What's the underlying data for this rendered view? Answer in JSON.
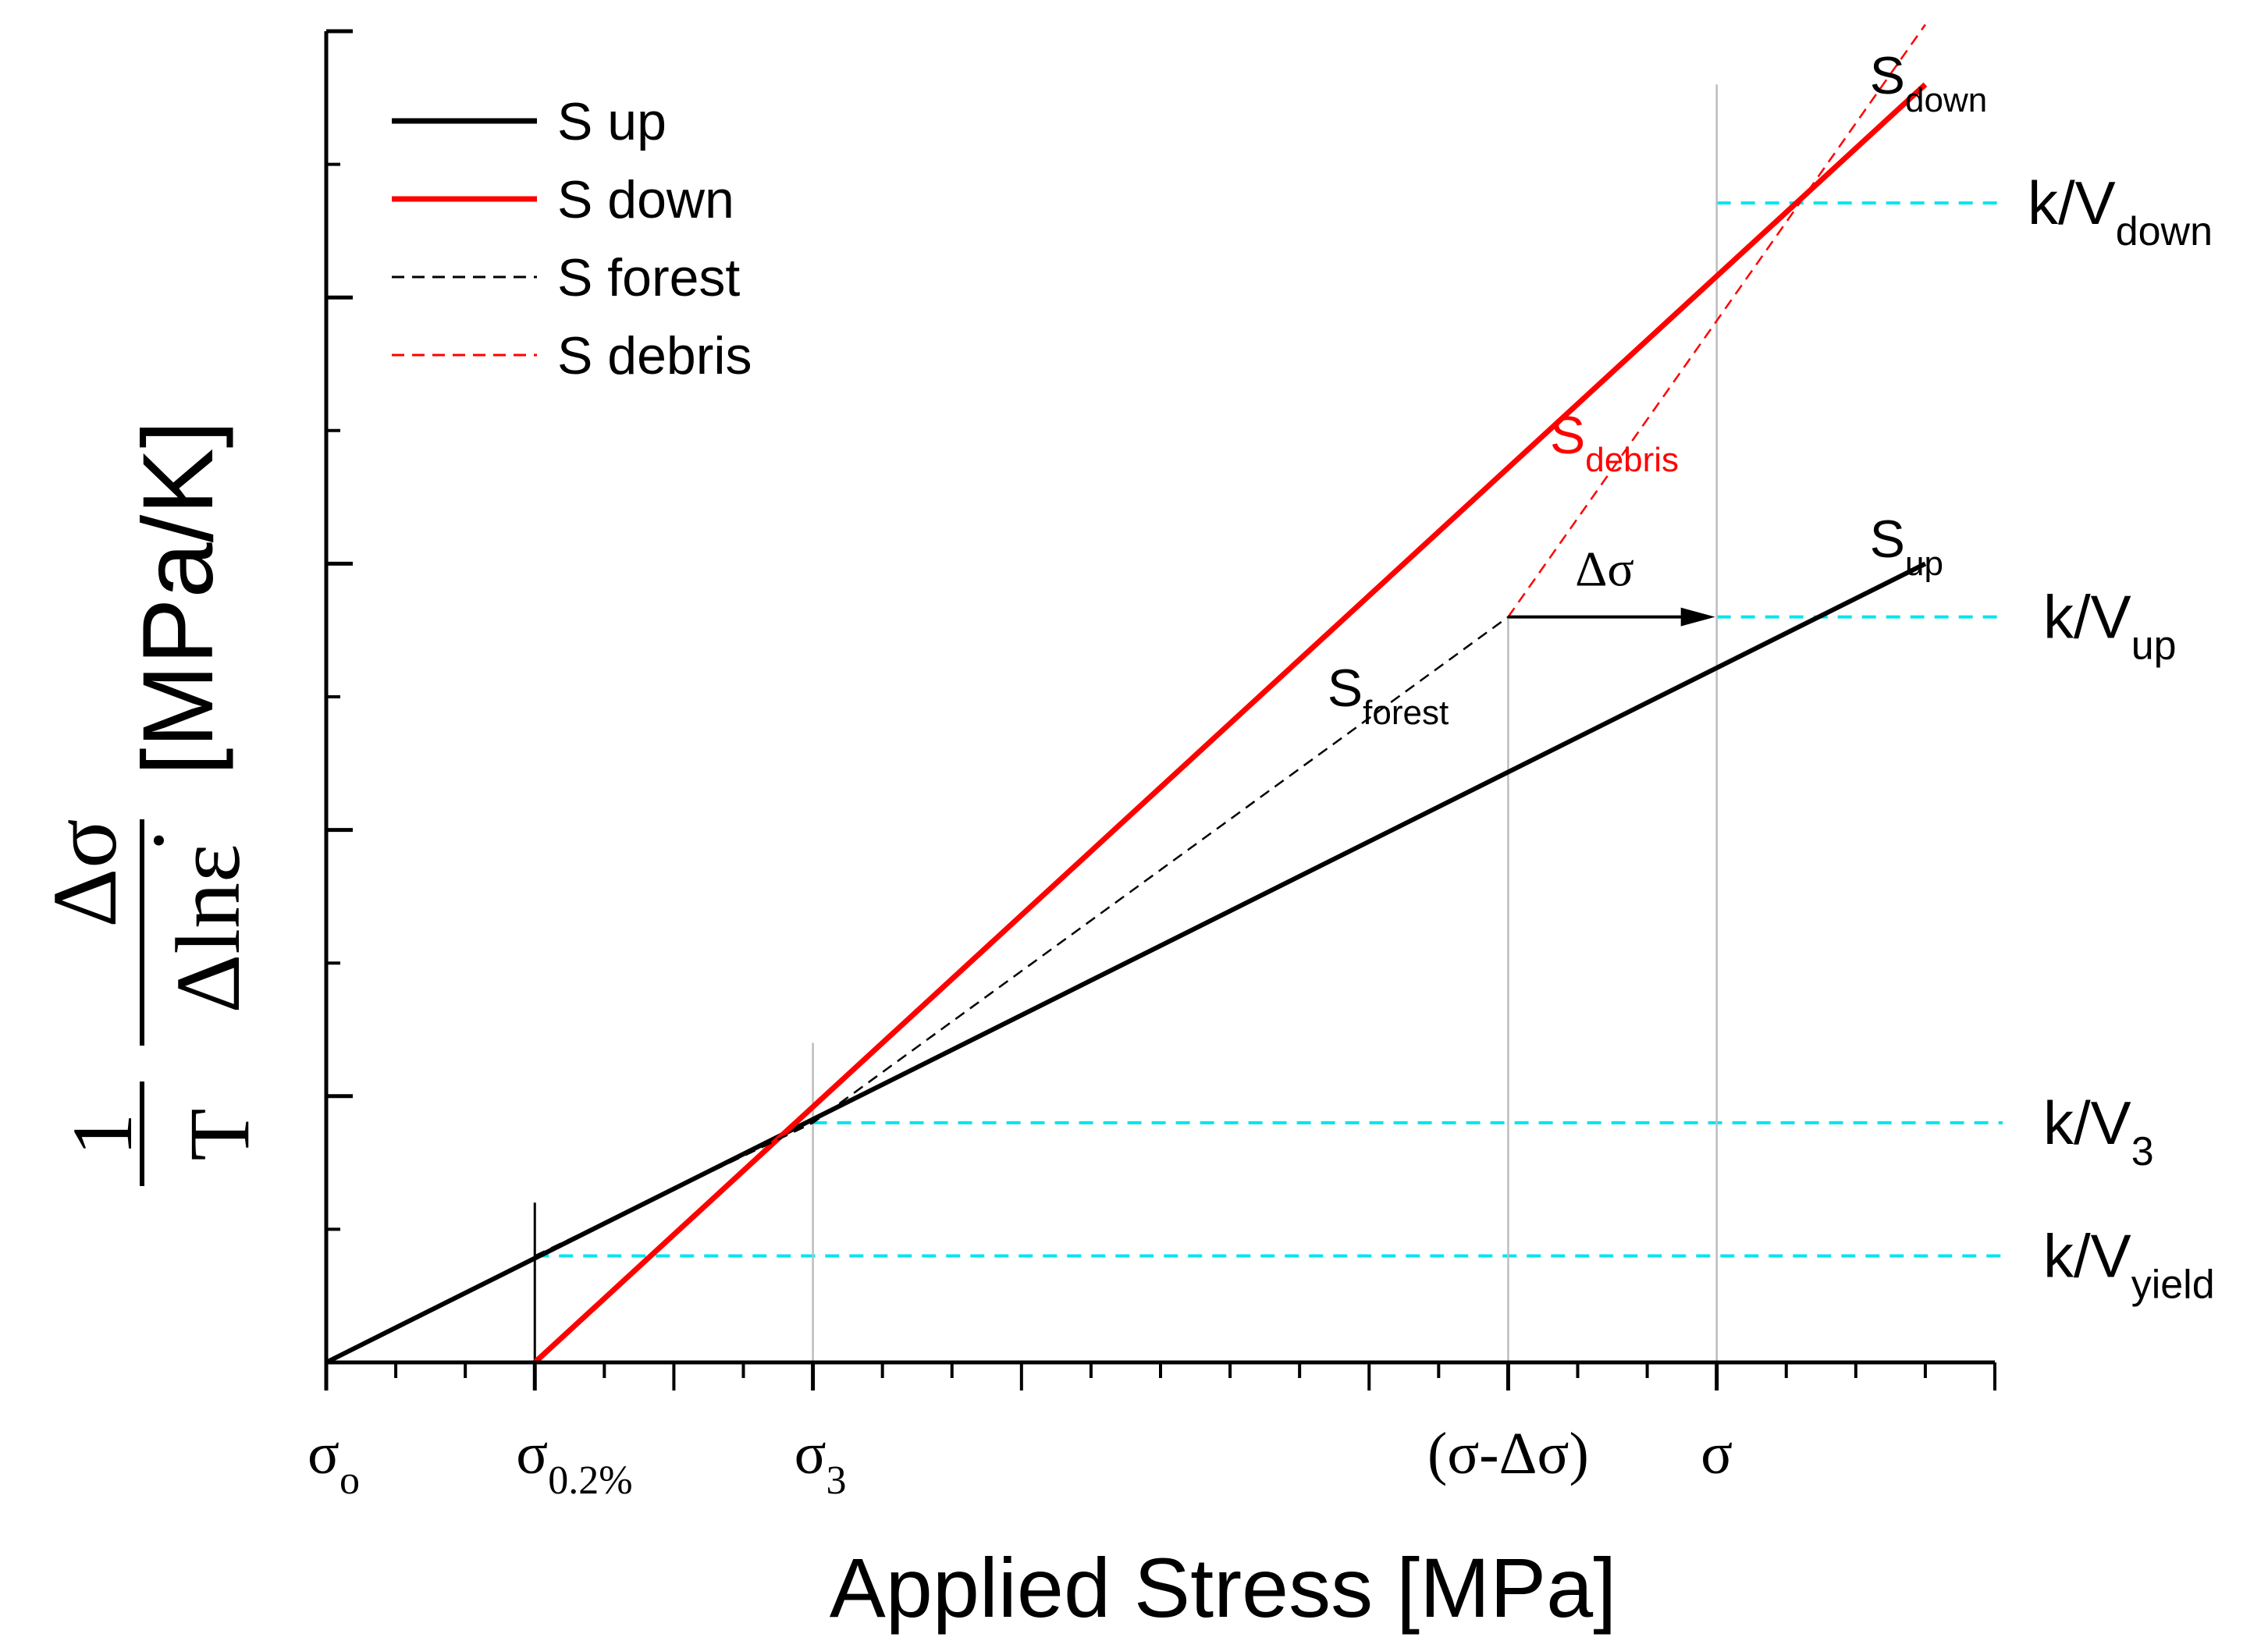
{
  "chart_data": {
    "type": "line",
    "title": "",
    "xlabel": "Applied Stress  [MPa]",
    "ylabel": {
      "unit": "[MPa/K]",
      "frac1_num": "1",
      "frac1_den": "T",
      "frac2_num": "Δσ",
      "frac2_den": "Δlnε",
      "dot": "·"
    },
    "xlim": [
      0,
      24
    ],
    "ylim": [
      0,
      100
    ],
    "x_ticks": [
      {
        "x": 0,
        "base": "σ",
        "sub": "o"
      },
      {
        "x": 3,
        "base": "σ",
        "sub": "0.2%"
      },
      {
        "x": 7,
        "base": "σ",
        "sub": "3"
      },
      {
        "x": 17,
        "base": "(σ-Δσ)",
        "sub": ""
      },
      {
        "x": 20,
        "base": "σ",
        "sub": ""
      }
    ],
    "minor_x_ticks": [
      1,
      2,
      4,
      5,
      6,
      8,
      9,
      10,
      11,
      12,
      13,
      14,
      15,
      16,
      18,
      19,
      21,
      22,
      23,
      24
    ],
    "y_major_ticks": [
      20,
      40,
      60,
      80,
      100
    ],
    "series": [
      {
        "name": "S up",
        "color": "#000000",
        "dash": "solid",
        "x": [
          0,
          23
        ],
        "y": [
          0,
          60
        ]
      },
      {
        "name": "S down",
        "color": "#ff0000",
        "dash": "solid",
        "x": [
          3,
          23
        ],
        "y": [
          0,
          96
        ]
      },
      {
        "name": "S forest",
        "color": "#000000",
        "dash": "dashed",
        "x": [
          3,
          7,
          17
        ],
        "y": [
          8,
          18,
          56
        ]
      },
      {
        "name": "S debris",
        "color": "#ff0000",
        "dash": "dashed",
        "x": [
          17,
          23
        ],
        "y": [
          56,
          100.5
        ]
      }
    ],
    "legend": {
      "placement": "top-left",
      "entries": [
        {
          "label": "S up",
          "color": "#000000",
          "dash": "solid"
        },
        {
          "label": "S down",
          "color": "#ff0000",
          "dash": "solid"
        },
        {
          "label": "S forest",
          "color": "#000000",
          "dash": "dashed"
        },
        {
          "label": "S debris",
          "color": "#ff0000",
          "dash": "dashed"
        }
      ]
    },
    "guide_color": "#00e5ee",
    "guides": [
      {
        "label": "k/V",
        "sub": "down",
        "y": 87.1,
        "from_x": 20
      },
      {
        "label": "k/V",
        "sub": "up",
        "y": 56,
        "from_x": 20
      },
      {
        "label": "k/V",
        "sub": "3",
        "y": 18,
        "from_x": 7
      },
      {
        "label": "k/V",
        "sub": "yield",
        "y": 8,
        "from_x": 3
      }
    ],
    "vertical_lines": [
      {
        "x": 3,
        "y_top": 12,
        "color": "#000000"
      },
      {
        "x": 7,
        "y_top": 24,
        "color": "#bdbdbd"
      },
      {
        "x": 17,
        "y_top": 56,
        "color": "#bdbdbd"
      },
      {
        "x": 20,
        "y_top": 96,
        "color": "#bdbdbd"
      }
    ],
    "arrow": {
      "label": "Δσ",
      "from": [
        17,
        56
      ],
      "to": [
        20,
        56
      ]
    },
    "annotations": [
      {
        "base": "S",
        "sub": "down",
        "x": 22.2,
        "y": 95.3,
        "color": "#000000"
      },
      {
        "base": "S",
        "sub": "debris",
        "x": 17.6,
        "y": 68.3,
        "color": "#ff0000"
      },
      {
        "base": "S",
        "sub": "up",
        "x": 22.2,
        "y": 60.5,
        "color": "#000000"
      },
      {
        "base": "S",
        "sub": "forest",
        "x": 14.4,
        "y": 49.3,
        "color": "#000000"
      }
    ]
  }
}
